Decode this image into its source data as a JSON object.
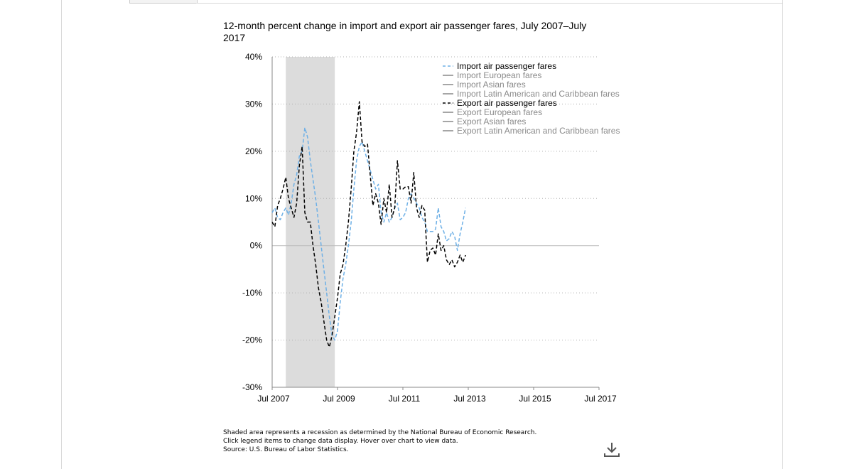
{
  "chart_data": {
    "type": "line",
    "title": "12-month percent change in import and export air passenger fares, July 2007–July 2017",
    "ylim": [
      -30,
      40
    ],
    "yticks": [
      "40%",
      "30%",
      "20%",
      "10%",
      "0%",
      "-10%",
      "-20%",
      "-30%"
    ],
    "xlim": [
      "2007-07",
      "2017-07"
    ],
    "xticks": [
      "Jul 2007",
      "Jul 2009",
      "Jul 2011",
      "Jul 2013",
      "Jul 2015",
      "Jul 2017"
    ],
    "recession": [
      "2007-12",
      "2009-06"
    ],
    "grid": "horizontal dotted",
    "legend_position": "top-right",
    "legend": [
      {
        "label": "Import air passenger fares",
        "active": true,
        "style": "dashed",
        "color": "#6eb0e6"
      },
      {
        "label": "Import European fares",
        "active": false,
        "style": "solid",
        "color": "#888888"
      },
      {
        "label": "Import Asian fares",
        "active": false,
        "style": "solid",
        "color": "#888888"
      },
      {
        "label": "Import Latin American and Caribbean fares",
        "active": false,
        "style": "solid",
        "color": "#888888"
      },
      {
        "label": "Export air passenger fares",
        "active": true,
        "style": "dashed",
        "color": "#000000"
      },
      {
        "label": "Export European fares",
        "active": false,
        "style": "solid",
        "color": "#888888"
      },
      {
        "label": "Export Asian fares",
        "active": false,
        "style": "solid",
        "color": "#888888"
      },
      {
        "label": "Export Latin American and Caribbean fares",
        "active": false,
        "style": "solid",
        "color": "#888888"
      }
    ],
    "series": [
      {
        "name": "Import air passenger fares",
        "color": "#6eb0e6",
        "points": [
          [
            "2007-07",
            7.0
          ],
          [
            "2007-08",
            8.0
          ],
          [
            "2007-09",
            6.0
          ],
          [
            "2007-10",
            5.5
          ],
          [
            "2007-11",
            7.0
          ],
          [
            "2007-12",
            8.0
          ],
          [
            "2008-01",
            6.5
          ],
          [
            "2008-02",
            9.0
          ],
          [
            "2008-03",
            13.0
          ],
          [
            "2008-04",
            15.0
          ],
          [
            "2008-05",
            19.0
          ],
          [
            "2008-06",
            20.0
          ],
          [
            "2008-07",
            25.0
          ],
          [
            "2008-08",
            23.0
          ],
          [
            "2008-09",
            18.0
          ],
          [
            "2008-10",
            14.0
          ],
          [
            "2008-11",
            10.0
          ],
          [
            "2008-12",
            5.0
          ],
          [
            "2009-01",
            0.0
          ],
          [
            "2009-02",
            -5.0
          ],
          [
            "2009-03",
            -10.0
          ],
          [
            "2009-04",
            -15.0
          ],
          [
            "2009-05",
            -19.0
          ],
          [
            "2009-06",
            -20.0
          ],
          [
            "2009-07",
            -18.0
          ],
          [
            "2009-08",
            -12.0
          ],
          [
            "2009-09",
            -7.0
          ],
          [
            "2009-10",
            -4.0
          ],
          [
            "2009-11",
            0.0
          ],
          [
            "2009-12",
            5.0
          ],
          [
            "2010-01",
            12.0
          ],
          [
            "2010-02",
            18.0
          ],
          [
            "2010-03",
            21.0
          ],
          [
            "2010-04",
            22.0
          ],
          [
            "2010-05",
            20.0
          ],
          [
            "2010-06",
            18.0
          ],
          [
            "2010-07",
            16.0
          ],
          [
            "2010-08",
            14.0
          ],
          [
            "2010-09",
            12.0
          ],
          [
            "2010-10",
            13.0
          ],
          [
            "2010-11",
            7.0
          ],
          [
            "2010-12",
            5.0
          ],
          [
            "2011-01",
            7.0
          ],
          [
            "2011-02",
            5.0
          ],
          [
            "2011-03",
            6.0
          ],
          [
            "2011-04",
            8.0
          ],
          [
            "2011-05",
            9.0
          ],
          [
            "2011-06",
            5.5
          ],
          [
            "2011-07",
            6.0
          ],
          [
            "2011-08",
            7.0
          ],
          [
            "2011-09",
            10.0
          ],
          [
            "2011-10",
            11.0
          ],
          [
            "2011-11",
            10.0
          ],
          [
            "2011-12",
            9.0
          ],
          [
            "2012-01",
            8.0
          ],
          [
            "2012-02",
            6.0
          ],
          [
            "2012-03",
            5.0
          ],
          [
            "2012-04",
            3.0
          ],
          [
            "2012-05",
            3.0
          ],
          [
            "2012-06",
            3.0
          ],
          [
            "2012-07",
            3.5
          ],
          [
            "2012-08",
            8.0
          ],
          [
            "2012-09",
            4.0
          ],
          [
            "2012-10",
            3.0
          ],
          [
            "2012-11",
            1.0
          ],
          [
            "2012-12",
            1.5
          ],
          [
            "2013-01",
            3.0
          ],
          [
            "2013-02",
            2.0
          ],
          [
            "2013-03",
            -1.0
          ],
          [
            "2013-04",
            2.5
          ],
          [
            "2013-05",
            5.0
          ],
          [
            "2013-06",
            8.0
          ]
        ]
      },
      {
        "name": "Export air passenger fares",
        "color": "#000000",
        "points": [
          [
            "2007-07",
            5.0
          ],
          [
            "2007-08",
            4.0
          ],
          [
            "2007-09",
            8.5
          ],
          [
            "2007-10",
            10.0
          ],
          [
            "2007-11",
            12.0
          ],
          [
            "2007-12",
            14.5
          ],
          [
            "2008-01",
            10.0
          ],
          [
            "2008-02",
            8.0
          ],
          [
            "2008-03",
            6.0
          ],
          [
            "2008-04",
            9.0
          ],
          [
            "2008-05",
            17.0
          ],
          [
            "2008-06",
            21.0
          ],
          [
            "2008-07",
            7.0
          ],
          [
            "2008-08",
            5.0
          ],
          [
            "2008-09",
            5.0
          ],
          [
            "2008-10",
            0.0
          ],
          [
            "2008-11",
            -4.0
          ],
          [
            "2008-12",
            -9.0
          ],
          [
            "2009-01",
            -12.0
          ],
          [
            "2009-02",
            -16.0
          ],
          [
            "2009-03",
            -20.0
          ],
          [
            "2009-04",
            -21.5
          ],
          [
            "2009-05",
            -19.0
          ],
          [
            "2009-06",
            -15.0
          ],
          [
            "2009-07",
            -11.0
          ],
          [
            "2009-08",
            -6.0
          ],
          [
            "2009-09",
            -4.0
          ],
          [
            "2009-10",
            0.0
          ],
          [
            "2009-11",
            5.0
          ],
          [
            "2009-12",
            12.0
          ],
          [
            "2010-01",
            20.0
          ],
          [
            "2010-02",
            24.0
          ],
          [
            "2010-03",
            30.5
          ],
          [
            "2010-04",
            22.0
          ],
          [
            "2010-05",
            21.0
          ],
          [
            "2010-06",
            21.5
          ],
          [
            "2010-07",
            15.0
          ],
          [
            "2010-08",
            8.5
          ],
          [
            "2010-09",
            11.0
          ],
          [
            "2010-10",
            9.0
          ],
          [
            "2010-11",
            4.5
          ],
          [
            "2010-12",
            10.0
          ],
          [
            "2011-01",
            7.0
          ],
          [
            "2011-02",
            13.0
          ],
          [
            "2011-03",
            6.0
          ],
          [
            "2011-04",
            8.0
          ],
          [
            "2011-05",
            18.0
          ],
          [
            "2011-06",
            12.0
          ],
          [
            "2011-07",
            12.0
          ],
          [
            "2011-08",
            12.5
          ],
          [
            "2011-09",
            12.5
          ],
          [
            "2011-10",
            9.0
          ],
          [
            "2011-11",
            15.5
          ],
          [
            "2011-12",
            8.0
          ],
          [
            "2012-01",
            6.0
          ],
          [
            "2012-02",
            8.5
          ],
          [
            "2012-03",
            7.5
          ],
          [
            "2012-04",
            -3.5
          ],
          [
            "2012-05",
            -1.0
          ],
          [
            "2012-06",
            -0.5
          ],
          [
            "2012-07",
            -2.0
          ],
          [
            "2012-08",
            2.5
          ],
          [
            "2012-09",
            -1.0
          ],
          [
            "2012-10",
            0.0
          ],
          [
            "2012-11",
            -3.0
          ],
          [
            "2012-12",
            -4.0
          ],
          [
            "2013-01",
            -3.0
          ],
          [
            "2013-02",
            -4.5
          ],
          [
            "2013-03",
            -3.5
          ],
          [
            "2013-04",
            -2.0
          ],
          [
            "2013-05",
            -3.5
          ],
          [
            "2013-06",
            -2.0
          ]
        ]
      }
    ]
  },
  "notes": [
    "Shaded area represents a recession as determined by the National Bureau of Economic Research.",
    "Click legend items to change data display. Hover over chart to view data.",
    "Source: U.S. Bureau of Labor Statistics."
  ],
  "icons": {
    "download": "download-icon"
  }
}
